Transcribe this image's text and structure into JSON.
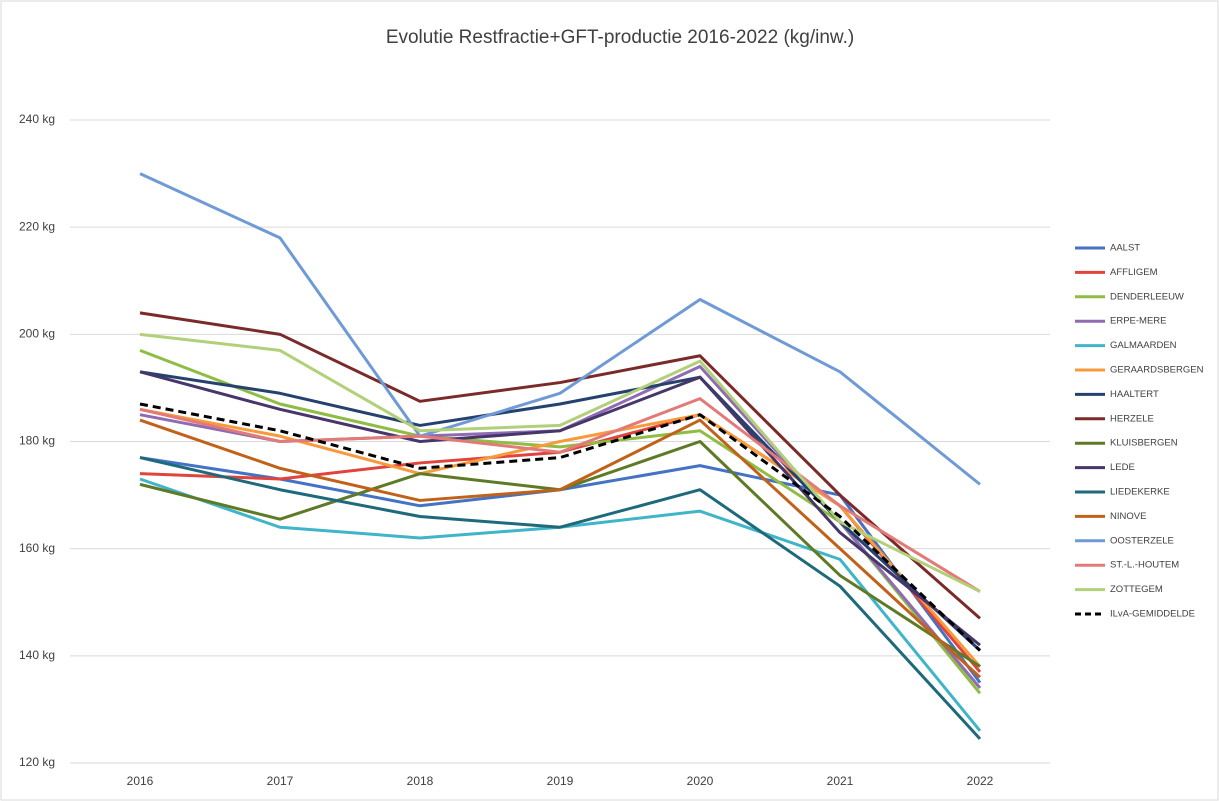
{
  "chart_data": {
    "type": "line",
    "title": "Evolutie Restfractie+GFT-productie  2016-2022 (kg/inw.)",
    "categories": [
      "2016",
      "2017",
      "2018",
      "2019",
      "2020",
      "2021",
      "2022"
    ],
    "ylim": [
      120,
      240
    ],
    "yticks": [
      {
        "value": 120,
        "label": "120 kg"
      },
      {
        "value": 140,
        "label": "140 kg"
      },
      {
        "value": 160,
        "label": "160 kg"
      },
      {
        "value": 180,
        "label": "180 kg"
      },
      {
        "value": 200,
        "label": "200 kg"
      },
      {
        "value": 220,
        "label": "220 kg"
      },
      {
        "value": 240,
        "label": "240 kg"
      }
    ],
    "grid": true,
    "legend": "right",
    "series": [
      {
        "name": "AALST",
        "color": "#4472c4",
        "values": [
          177,
          173,
          168,
          171,
          175.5,
          170,
          135
        ]
      },
      {
        "name": "AFFLIGEM",
        "color": "#e0443c",
        "values": [
          174,
          173,
          176,
          178,
          185,
          168,
          137
        ]
      },
      {
        "name": "DENDERLEEUW",
        "color": "#8fbc45",
        "values": [
          197,
          187,
          181,
          179,
          182,
          165,
          133
        ]
      },
      {
        "name": "ERPE-MERE",
        "color": "#8e6bb3",
        "values": [
          185,
          180,
          181,
          182,
          194,
          165,
          134
        ]
      },
      {
        "name": "GALMAARDEN",
        "color": "#40b4c9",
        "values": [
          173,
          164,
          162,
          164,
          167,
          158,
          126
        ]
      },
      {
        "name": "GERAARDSBERGEN",
        "color": "#f79a3c",
        "values": [
          186,
          181,
          174,
          180,
          185,
          168,
          138
        ]
      },
      {
        "name": "HAALTERT",
        "color": "#25426e",
        "values": [
          193,
          189,
          183,
          187,
          192,
          165,
          141
        ]
      },
      {
        "name": "HERZELE",
        "color": "#7b2a2a",
        "values": [
          204,
          200,
          187.5,
          191,
          196,
          170,
          147
        ]
      },
      {
        "name": "KLUISBERGEN",
        "color": "#5f7a26",
        "values": [
          172,
          165.5,
          174,
          171,
          180,
          155,
          138
        ]
      },
      {
        "name": "LEDE",
        "color": "#463669",
        "values": [
          193,
          186,
          180,
          182,
          192,
          163,
          142
        ]
      },
      {
        "name": "LIEDEKERKE",
        "color": "#1e6a7a",
        "values": [
          177,
          171,
          166,
          164,
          171,
          153,
          124.5
        ]
      },
      {
        "name": "NINOVE",
        "color": "#c0621a",
        "values": [
          184,
          175,
          169,
          171,
          184,
          160,
          136
        ]
      },
      {
        "name": "OOSTERZELE",
        "color": "#6f9ad6",
        "values": [
          230,
          218,
          181,
          189,
          206.5,
          193,
          172
        ]
      },
      {
        "name": "ST.-L.-HOUTEM",
        "color": "#e27b78",
        "values": [
          186,
          180,
          181,
          178,
          188,
          168,
          152
        ]
      },
      {
        "name": "ZOTTEGEM",
        "color": "#b2d07a",
        "values": [
          200,
          197,
          182,
          183,
          195,
          165,
          152
        ]
      },
      {
        "name": "ILvA-GEMIDDELDE",
        "color": "#000000",
        "dashed": true,
        "values": [
          187,
          182,
          175,
          177,
          185,
          166,
          141
        ]
      }
    ]
  }
}
